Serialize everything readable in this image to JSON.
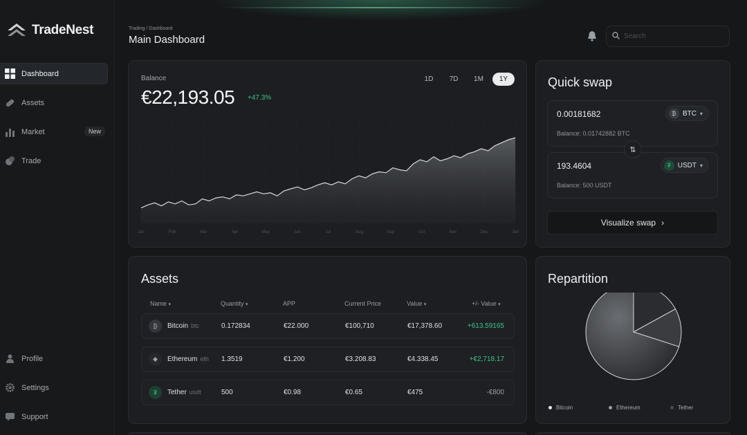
{
  "app": {
    "name": "TradeNest"
  },
  "header": {
    "breadcrumb": "Trading / Dashboard",
    "title": "Main Dashboard",
    "search_placeholder": "Search"
  },
  "sidebar": {
    "items": [
      {
        "label": "Dashboard",
        "icon": "grid-icon",
        "active": true
      },
      {
        "label": "Assets",
        "icon": "pill-icon"
      },
      {
        "label": "Market",
        "icon": "bar-chart-icon",
        "badge": "New"
      },
      {
        "label": "Trade",
        "icon": "coins-icon"
      }
    ],
    "bottom_items": [
      {
        "label": "Profile",
        "icon": "user-icon"
      },
      {
        "label": "Settings",
        "icon": "gear-icon"
      },
      {
        "label": "Support",
        "icon": "chat-icon"
      }
    ]
  },
  "balance": {
    "label": "Balance",
    "value": "€22,193.05",
    "change": "+47.3%",
    "ranges": [
      "1D",
      "7D",
      "1M",
      "1Y"
    ],
    "active_range": "1Y"
  },
  "chart_data": {
    "type": "area",
    "x_ticks": [
      "Jan",
      "Feb",
      "Mar",
      "Apr",
      "May",
      "Jun",
      "Jul",
      "Aug",
      "Sep",
      "Oct",
      "Nov",
      "Dec",
      "Jan"
    ],
    "y": [
      12,
      15,
      17,
      14,
      18,
      16,
      19,
      15,
      16,
      21,
      19,
      22,
      23,
      21,
      25,
      24,
      26,
      28,
      26,
      27,
      24,
      29,
      31,
      33,
      30,
      32,
      35,
      37,
      35,
      38,
      36,
      41,
      44,
      42,
      46,
      48,
      47,
      52,
      50,
      49,
      56,
      60,
      58,
      63,
      59,
      61,
      64,
      62,
      66,
      68,
      71,
      69,
      74,
      77,
      80,
      82
    ],
    "ylim": [
      0,
      100
    ]
  },
  "swap": {
    "title": "Quick swap",
    "from": {
      "amount": "0.00181682",
      "token": "BTC",
      "balance": "Balance: 0.01742882 BTC"
    },
    "to": {
      "amount": "193.4604",
      "token": "USDT",
      "balance": "Balance: 500 USDT"
    },
    "button": "Visualize swap"
  },
  "assets": {
    "title": "Assets",
    "columns": [
      "Name",
      "Quantity",
      "APP",
      "Current Price",
      "Value",
      "+/- Value"
    ],
    "rows": [
      {
        "name": "Bitcoin",
        "symbol": "btc",
        "quantity": "0.172834",
        "app": "€22.000",
        "price": "€100,710",
        "value": "€17,378.60",
        "pl": "+613.59165",
        "pl_sign": "pos",
        "icon": "bitcoin-icon"
      },
      {
        "name": "Ethereum",
        "symbol": "eth",
        "quantity": "1.3519",
        "app": "€1.200",
        "price": "€3.208.83",
        "value": "€4.338.45",
        "pl": "+€2,718.17",
        "pl_sign": "pos",
        "icon": "ethereum-icon"
      },
      {
        "name": "Tether",
        "symbol": "usdt",
        "quantity": "500",
        "app": "€0.98",
        "price": "€0.65",
        "value": "€475",
        "pl": "-€800",
        "pl_sign": "neg",
        "icon": "tether-icon"
      }
    ]
  },
  "repartition": {
    "title": "Repartition",
    "legend": [
      "Bitcoin",
      "Ethereum",
      "Tether"
    ],
    "slices": [
      {
        "name": "Bitcoin",
        "share": 0.7,
        "color": "#5a5c60"
      },
      {
        "name": "Ethereum",
        "share": 0.13,
        "color": "#3a3c40"
      },
      {
        "name": "Tether",
        "share": 0.17,
        "color": "#2a2c30"
      }
    ]
  },
  "colors": {
    "positive": "#3ec58a",
    "accent_glow": "#50c896"
  }
}
